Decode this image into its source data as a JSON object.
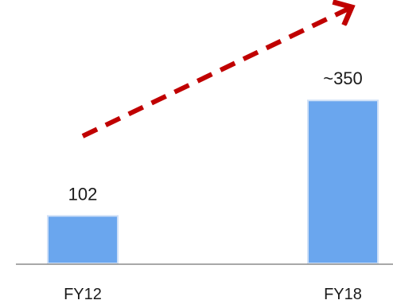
{
  "chart_data": {
    "type": "bar",
    "title": "",
    "xlabel": "",
    "ylabel": "",
    "categories": [
      "FY12",
      "FY18"
    ],
    "values": [
      102,
      350
    ],
    "data_labels": [
      "102",
      "~350"
    ],
    "ylim": [
      0,
      400
    ],
    "grid": false,
    "legend": "none",
    "annotations": [
      {
        "type": "dashed-arrow",
        "from": "FY12",
        "to": "FY18",
        "color": "#c00000"
      }
    ],
    "colors": {
      "bar": "#6aa6ee",
      "bar_edge": "#cfe0f7",
      "axis": "#8c8c8c",
      "arrow": "#c00000"
    }
  }
}
